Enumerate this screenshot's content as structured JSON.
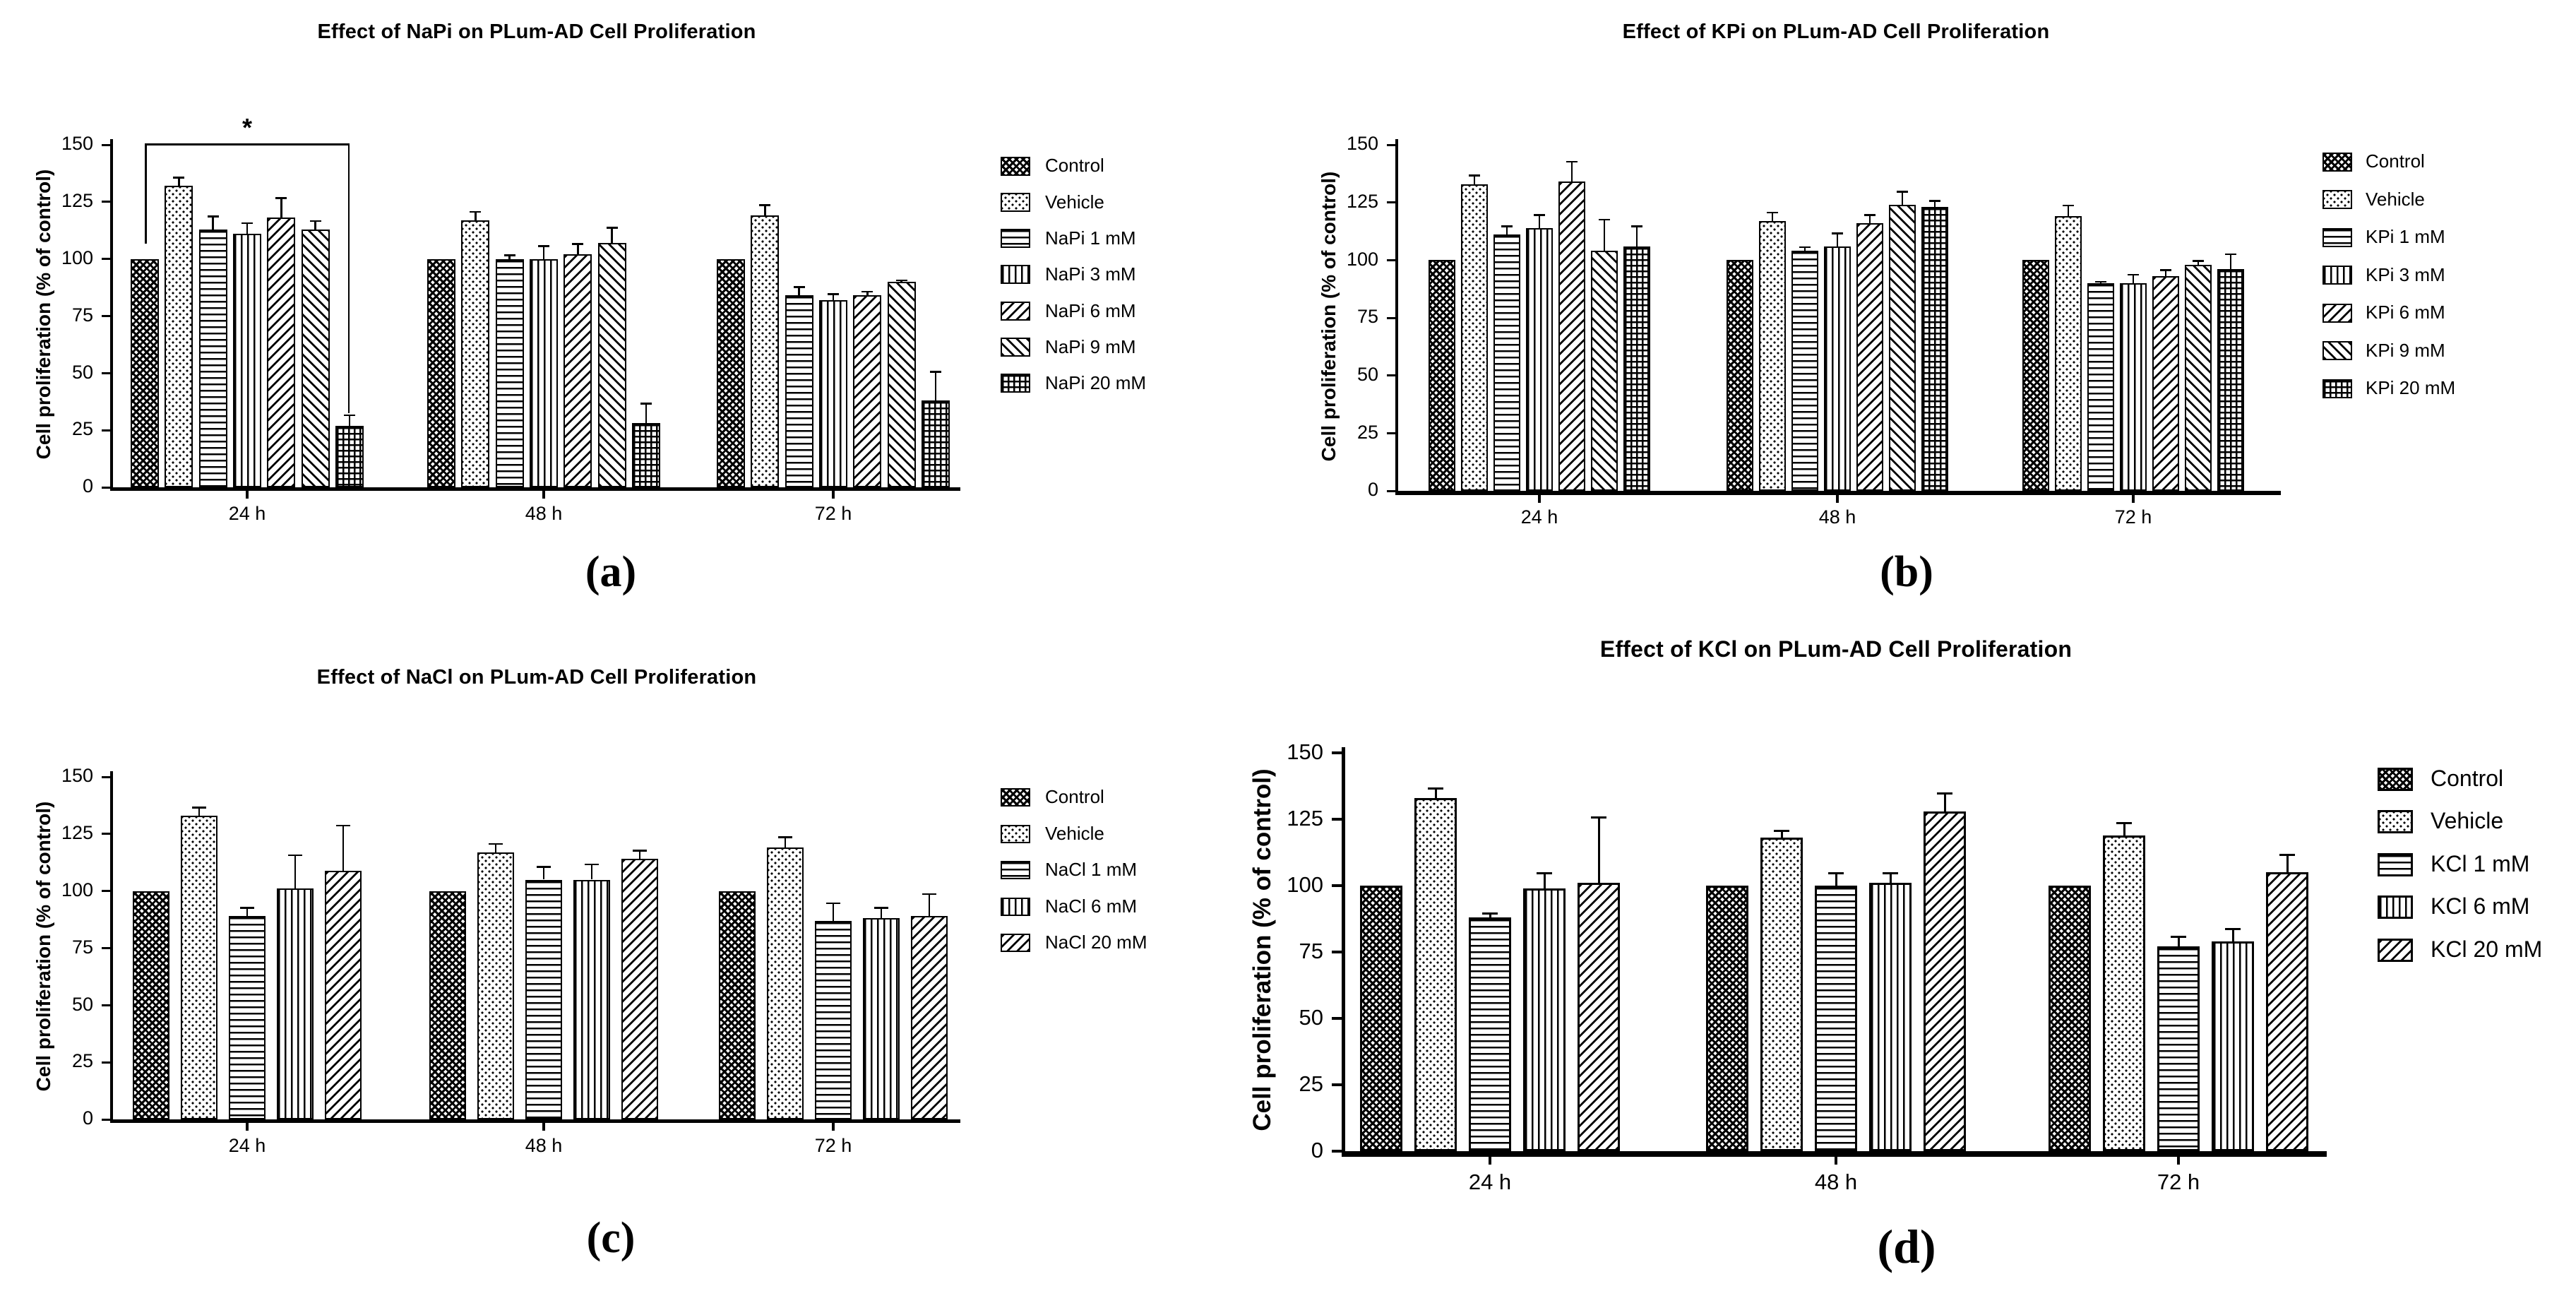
{
  "colors": {
    "ink": "#000000",
    "background": "#ffffff"
  },
  "chart_data": [
    {
      "id": "a",
      "type": "bar",
      "panel_label": "(a)",
      "title": "Effect of NaPi on PLum-AD Cell Proliferation",
      "ylabel": "Cell proliferation (% of control)",
      "xlabel": "",
      "ylim": [
        0,
        150
      ],
      "yticks": [
        0,
        25,
        50,
        75,
        100,
        125,
        150
      ],
      "categories": [
        "24 h",
        "48 h",
        "72 h"
      ],
      "grid": false,
      "legend_position": "right",
      "series": [
        {
          "name": "Control",
          "pattern": "checker",
          "values": [
            100,
            100,
            100
          ],
          "errors": [
            0,
            0,
            0
          ]
        },
        {
          "name": "Vehicle",
          "pattern": "dots",
          "values": [
            132,
            117,
            119
          ],
          "errors": [
            4,
            4,
            5
          ]
        },
        {
          "name": "NaPi 1 mM",
          "pattern": "hlines",
          "values": [
            113,
            100,
            84
          ],
          "errors": [
            6,
            2,
            4
          ]
        },
        {
          "name": "NaPi 3 mM",
          "pattern": "vlines",
          "values": [
            111,
            100,
            82
          ],
          "errors": [
            5,
            6,
            3
          ]
        },
        {
          "name": "NaPi 6 mM",
          "pattern": "diag-up",
          "values": [
            118,
            102,
            84
          ],
          "errors": [
            9,
            5,
            2
          ]
        },
        {
          "name": "NaPi 9 mM",
          "pattern": "diag-down",
          "values": [
            113,
            107,
            90
          ],
          "errors": [
            4,
            7,
            1
          ]
        },
        {
          "name": "NaPi 20 mM",
          "pattern": "grid",
          "values": [
            27,
            28,
            38
          ],
          "errors": [
            5,
            9,
            13
          ]
        }
      ],
      "significance": {
        "label": "*",
        "category": "24 h",
        "from_series": "Control",
        "to_series": "NaPi 20 mM"
      }
    },
    {
      "id": "b",
      "type": "bar",
      "panel_label": "(b)",
      "title": "Effect of KPi on PLum-AD Cell Proliferation",
      "ylabel": "Cell proliferation (% of control)",
      "xlabel": "",
      "ylim": [
        0,
        150
      ],
      "yticks": [
        0,
        25,
        50,
        75,
        100,
        125,
        150
      ],
      "categories": [
        "24 h",
        "48 h",
        "72 h"
      ],
      "grid": false,
      "legend_position": "right",
      "series": [
        {
          "name": "Control",
          "pattern": "checker",
          "values": [
            100,
            100,
            100
          ],
          "errors": [
            0,
            0,
            0
          ]
        },
        {
          "name": "Vehicle",
          "pattern": "dots",
          "values": [
            133,
            117,
            119
          ],
          "errors": [
            4,
            4,
            5
          ]
        },
        {
          "name": "KPi 1 mM",
          "pattern": "hlines",
          "values": [
            111,
            104,
            90
          ],
          "errors": [
            4,
            2,
            1
          ]
        },
        {
          "name": "KPi 3 mM",
          "pattern": "vlines",
          "values": [
            114,
            106,
            90
          ],
          "errors": [
            6,
            6,
            4
          ]
        },
        {
          "name": "KPi 6 mM",
          "pattern": "diag-up",
          "values": [
            134,
            116,
            93
          ],
          "errors": [
            9,
            4,
            3
          ]
        },
        {
          "name": "KPi 9 mM",
          "pattern": "diag-down",
          "values": [
            104,
            124,
            98
          ],
          "errors": [
            14,
            6,
            2
          ]
        },
        {
          "name": "KPi 20 mM",
          "pattern": "grid",
          "values": [
            106,
            123,
            96
          ],
          "errors": [
            9,
            3,
            7
          ]
        }
      ],
      "significance": null
    },
    {
      "id": "c",
      "type": "bar",
      "panel_label": "(c)",
      "title": "Effect of NaCl on PLum-AD Cell Proliferation",
      "ylabel": "Cell proliferation (% of control)",
      "xlabel": "",
      "ylim": [
        0,
        150
      ],
      "yticks": [
        0,
        25,
        50,
        75,
        100,
        125,
        150
      ],
      "categories": [
        "24 h",
        "48 h",
        "72 h"
      ],
      "grid": false,
      "legend_position": "right",
      "series": [
        {
          "name": "Control",
          "pattern": "checker",
          "values": [
            100,
            100,
            100
          ],
          "errors": [
            0,
            0,
            0
          ]
        },
        {
          "name": "Vehicle",
          "pattern": "dots",
          "values": [
            133,
            117,
            119
          ],
          "errors": [
            4,
            4,
            5
          ]
        },
        {
          "name": "NaCl 1 mM",
          "pattern": "hlines",
          "values": [
            89,
            105,
            87
          ],
          "errors": [
            4,
            6,
            8
          ]
        },
        {
          "name": "NaCl 6 mM",
          "pattern": "vlines",
          "values": [
            101,
            105,
            88
          ],
          "errors": [
            15,
            7,
            5
          ]
        },
        {
          "name": "NaCl 20 mM",
          "pattern": "diag-up",
          "values": [
            109,
            114,
            89
          ],
          "errors": [
            20,
            4,
            10
          ]
        }
      ],
      "significance": null
    },
    {
      "id": "d",
      "type": "bar",
      "panel_label": "(d)",
      "title": "Effect of KCl on PLum-AD Cell Proliferation",
      "ylabel": "Cell proliferation (% of control)",
      "xlabel": "",
      "ylim": [
        0,
        150
      ],
      "yticks": [
        0,
        25,
        50,
        75,
        100,
        125,
        150
      ],
      "categories": [
        "24 h",
        "48 h",
        "72 h"
      ],
      "grid": false,
      "legend_position": "right",
      "series": [
        {
          "name": "Control",
          "pattern": "checker",
          "values": [
            100,
            100,
            100
          ],
          "errors": [
            0,
            0,
            0
          ]
        },
        {
          "name": "Vehicle",
          "pattern": "dots",
          "values": [
            133,
            118,
            119
          ],
          "errors": [
            4,
            3,
            5
          ]
        },
        {
          "name": "KCl 1 mM",
          "pattern": "hlines",
          "values": [
            88,
            100,
            77
          ],
          "errors": [
            2,
            5,
            4
          ]
        },
        {
          "name": "KCl 6 mM",
          "pattern": "vlines",
          "values": [
            99,
            101,
            79
          ],
          "errors": [
            6,
            4,
            5
          ]
        },
        {
          "name": "KCl 20 mM",
          "pattern": "diag-up",
          "values": [
            101,
            128,
            105
          ],
          "errors": [
            25,
            7,
            7
          ]
        }
      ],
      "significance": null
    }
  ]
}
